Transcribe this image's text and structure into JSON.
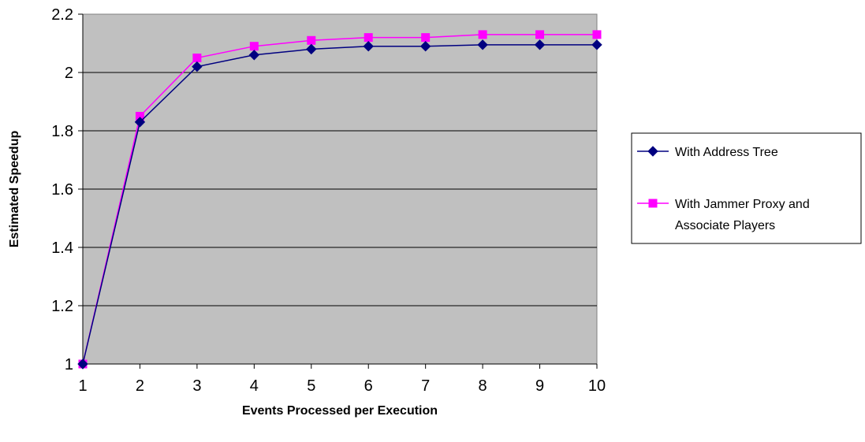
{
  "chart_data": {
    "type": "line",
    "title": "",
    "xlabel": "Events Processed per Execution",
    "ylabel": "Estimated Speedup",
    "x": [
      1,
      2,
      3,
      4,
      5,
      6,
      7,
      8,
      9,
      10
    ],
    "xticks": [
      "1",
      "2",
      "3",
      "4",
      "5",
      "6",
      "7",
      "8",
      "9",
      "10"
    ],
    "yticks": [
      "1",
      "1.2",
      "1.4",
      "1.6",
      "1.8",
      "2",
      "2.2"
    ],
    "ylim": [
      1,
      2.2
    ],
    "grid": true,
    "legend_position": "right",
    "colors": {
      "plot_background": "#c0c0c0",
      "series_1": "#000080",
      "series_2": "#ff00ff"
    },
    "series": [
      {
        "name": "With Address Tree",
        "marker": "diamond",
        "values": [
          1.0,
          1.83,
          2.02,
          2.06,
          2.08,
          2.09,
          2.09,
          2.095,
          2.095,
          2.095
        ]
      },
      {
        "name": "With Jammer Proxy and Associate Players",
        "marker": "square",
        "values": [
          1.0,
          1.85,
          2.05,
          2.09,
          2.11,
          2.12,
          2.12,
          2.13,
          2.13,
          2.13
        ]
      }
    ],
    "legend_lines": [
      [
        "With Address Tree"
      ],
      [
        "With Jammer Proxy and",
        "Associate Players"
      ]
    ]
  }
}
